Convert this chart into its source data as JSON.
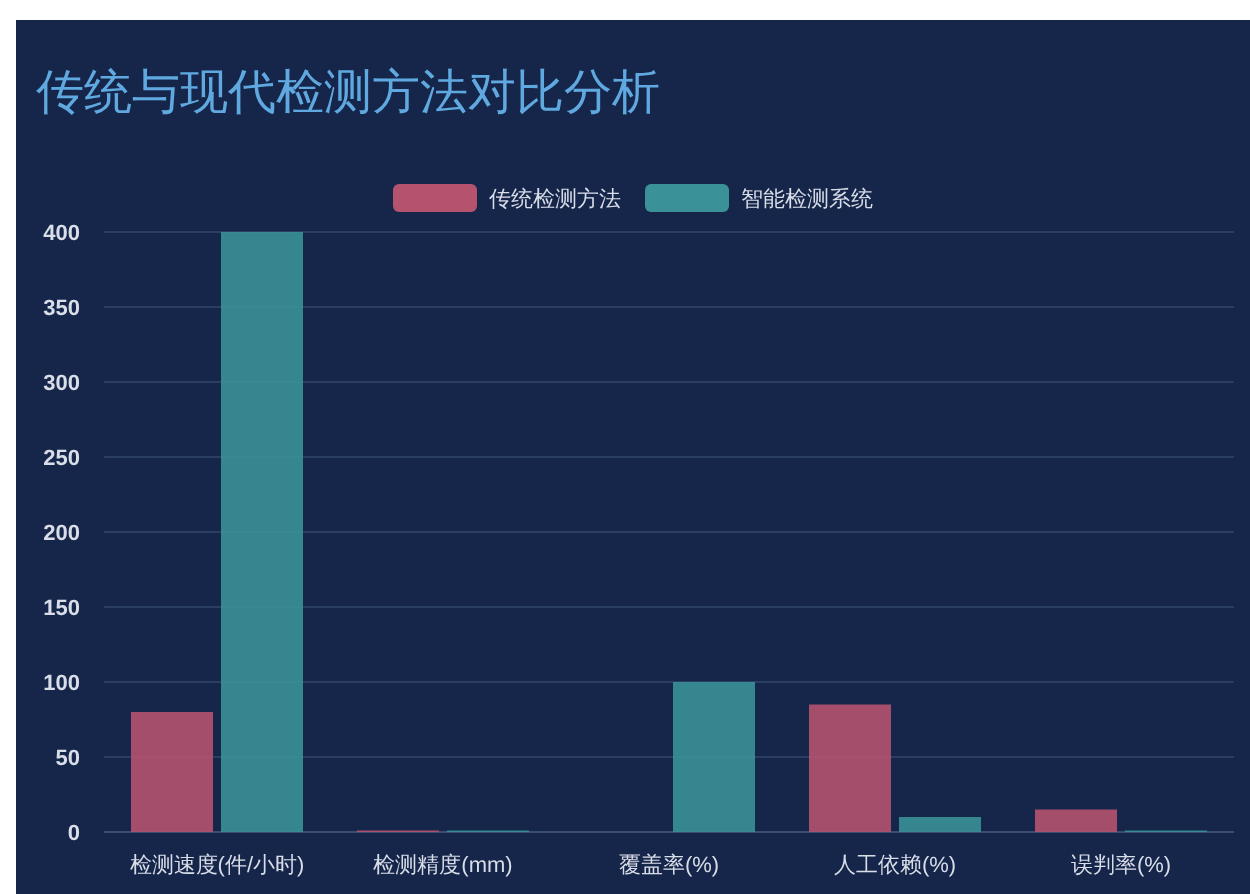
{
  "chart_data": {
    "type": "bar",
    "title": "传统与现代检测方法对比分析",
    "categories": [
      "检测速度(件/小时)",
      "检测精度(mm)",
      "覆盖率(%)",
      "人工依赖(%)",
      "误判率(%)"
    ],
    "series": [
      {
        "name": "传统检测方法",
        "color": "#b5536f",
        "values": [
          80,
          1,
          null,
          85,
          15
        ]
      },
      {
        "name": "智能检测系统",
        "color": "#3a9198",
        "values": [
          400,
          1,
          100,
          10,
          1
        ]
      }
    ],
    "ylim": [
      0,
      400
    ],
    "yticks": [
      0,
      50,
      100,
      150,
      200,
      250,
      300,
      350,
      400
    ],
    "grid": "y",
    "legend": "top"
  }
}
